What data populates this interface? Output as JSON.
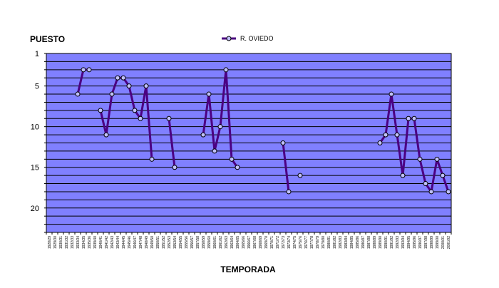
{
  "chart_data": {
    "type": "line",
    "ylabel": "PUESTO",
    "xlabel": "TEMPORADA",
    "ylim": [
      23,
      1
    ],
    "y_ticks": [
      1,
      5,
      10,
      15,
      20
    ],
    "y_inverted": true,
    "grid": true,
    "legend_position": "top-center",
    "colors": {
      "plot_background": "#8080ff",
      "gridline": "#000000",
      "series_line": "#4b0082",
      "marker_fill": "#c0c0ff",
      "marker_stroke": "#000000"
    },
    "categories": [
      "1928/29",
      "1929/30",
      "1930/31",
      "1931/32",
      "1932/33",
      "1933/34",
      "1934/35",
      "1935/36",
      "1939/40",
      "1940/41",
      "1941/42",
      "1942/43",
      "1943/44",
      "1944/45",
      "1945/46",
      "1946/47",
      "1947/48",
      "1948/49",
      "1949/50",
      "1950/51",
      "1951/52",
      "1952/53",
      "1953/54",
      "1954/55",
      "1955/56",
      "1956/57",
      "1957/58",
      "1958/59",
      "1959/60",
      "1960/61",
      "1961/62",
      "1962/63",
      "1963/64",
      "1964/65",
      "1965/66",
      "1966/67",
      "1967/68",
      "1968/69",
      "1969/70",
      "1970/71",
      "1971/72",
      "1972/73",
      "1973/74",
      "1974/75",
      "1975/76",
      "1976/77",
      "1977/78",
      "1978/79",
      "1979/80",
      "1980/81",
      "1981/82",
      "1982/83",
      "1983/84",
      "1984/85",
      "1985/86",
      "1986/87",
      "1987/88",
      "1988/89",
      "1989/90",
      "1990/91",
      "1991/92",
      "1992/93",
      "1993/94",
      "1994/95",
      "1995/96",
      "1996/97",
      "1997/98",
      "1998/99",
      "1999/00",
      "2000/01",
      "2001/02"
    ],
    "series": [
      {
        "name": "R. OVIEDO",
        "values": [
          null,
          null,
          null,
          null,
          null,
          6,
          3,
          3,
          null,
          8,
          11,
          6,
          4,
          4,
          5,
          8,
          9,
          5,
          14,
          null,
          null,
          9,
          15,
          null,
          null,
          null,
          null,
          11,
          6,
          13,
          10,
          3,
          14,
          15,
          null,
          null,
          null,
          null,
          null,
          null,
          null,
          12,
          18,
          null,
          16,
          null,
          null,
          null,
          null,
          null,
          null,
          null,
          null,
          null,
          null,
          null,
          null,
          null,
          12,
          11,
          6,
          11,
          16,
          9,
          9,
          14,
          17,
          18,
          14,
          16,
          18
        ]
      }
    ]
  }
}
